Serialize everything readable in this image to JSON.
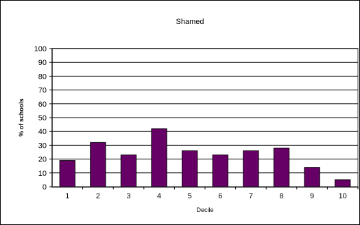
{
  "chart_data": {
    "type": "bar",
    "title": "Shamed",
    "xlabel": "Decile",
    "ylabel": "% of schools",
    "categories": [
      "1",
      "2",
      "3",
      "4",
      "5",
      "6",
      "7",
      "8",
      "9",
      "10"
    ],
    "values": [
      19,
      32,
      23,
      42,
      26,
      23,
      26,
      28,
      14,
      5
    ],
    "ylim": [
      0,
      100
    ],
    "yticks": [
      "0",
      "10",
      "20",
      "30",
      "40",
      "50",
      "60",
      "70",
      "80",
      "90",
      "100"
    ],
    "grid": true,
    "legend": "none",
    "colors": {
      "bar_fill": "#660066",
      "bar_stroke": "#000000",
      "plot_background": "#ffffff",
      "plot_border": "#a0a0a0",
      "gridline": "#000000"
    }
  }
}
